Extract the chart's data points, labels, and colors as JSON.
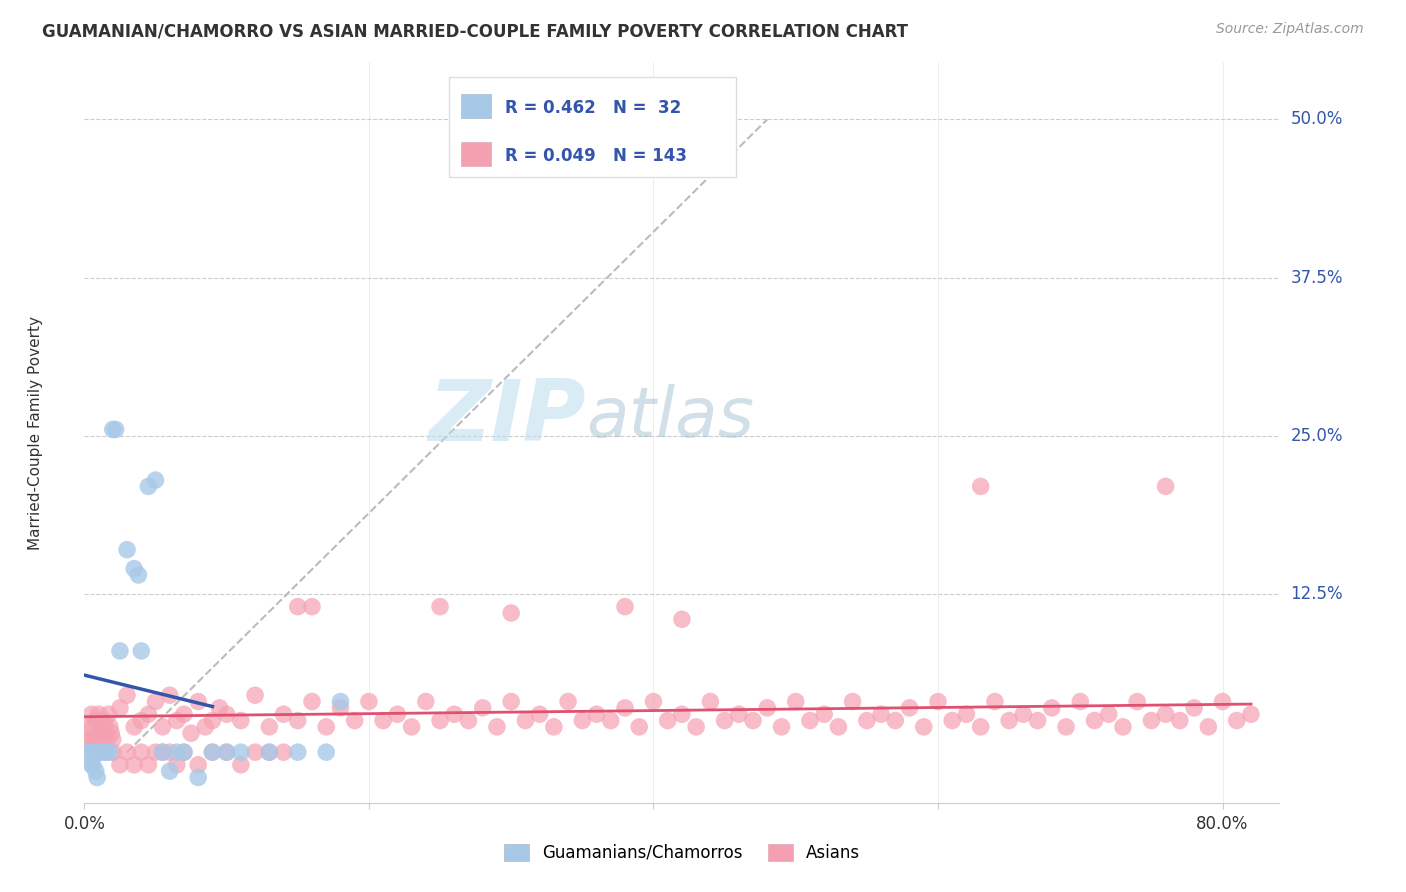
{
  "title": "GUAMANIAN/CHAMORRO VS ASIAN MARRIED-COUPLE FAMILY POVERTY CORRELATION CHART",
  "source": "Source: ZipAtlas.com",
  "ylabel": "Married-Couple Family Poverty",
  "ytick_vals": [
    0.0,
    0.125,
    0.25,
    0.375,
    0.5
  ],
  "ytick_labels": [
    "",
    "12.5%",
    "25.0%",
    "37.5%",
    "50.0%"
  ],
  "xlim": [
    0.0,
    0.84
  ],
  "ylim": [
    -0.04,
    0.545
  ],
  "blue_color": "#A8C8E8",
  "blue_line_color": "#3355AA",
  "pink_color": "#F5A0B0",
  "pink_line_color": "#E05070",
  "grid_color": "#CCCCCC",
  "watermark_zip": "ZIP",
  "watermark_atlas": "atlas",
  "blue_x": [
    0.003,
    0.004,
    0.005,
    0.006,
    0.007,
    0.008,
    0.009,
    0.01,
    0.012,
    0.015,
    0.018,
    0.02,
    0.022,
    0.025,
    0.03,
    0.035,
    0.038,
    0.04,
    0.045,
    0.05,
    0.055,
    0.06,
    0.065,
    0.07,
    0.08,
    0.09,
    0.1,
    0.11,
    0.13,
    0.15,
    0.17,
    0.18
  ],
  "blue_y": [
    0.0,
    0.0,
    -0.01,
    -0.01,
    0.0,
    -0.015,
    -0.02,
    0.0,
    0.0,
    0.0,
    0.0,
    0.255,
    0.255,
    0.08,
    0.16,
    0.145,
    0.14,
    0.08,
    0.21,
    0.215,
    0.0,
    -0.015,
    0.0,
    0.0,
    -0.02,
    0.0,
    0.0,
    0.0,
    0.0,
    0.0,
    0.0,
    0.04
  ],
  "pink_x": [
    0.002,
    0.003,
    0.004,
    0.005,
    0.006,
    0.007,
    0.008,
    0.009,
    0.01,
    0.011,
    0.012,
    0.013,
    0.014,
    0.015,
    0.016,
    0.017,
    0.018,
    0.019,
    0.02,
    0.025,
    0.03,
    0.035,
    0.04,
    0.045,
    0.05,
    0.055,
    0.06,
    0.065,
    0.07,
    0.075,
    0.08,
    0.085,
    0.09,
    0.095,
    0.1,
    0.11,
    0.12,
    0.13,
    0.14,
    0.15,
    0.16,
    0.17,
    0.18,
    0.19,
    0.2,
    0.21,
    0.22,
    0.23,
    0.24,
    0.25,
    0.26,
    0.27,
    0.28,
    0.29,
    0.3,
    0.31,
    0.32,
    0.33,
    0.34,
    0.35,
    0.36,
    0.37,
    0.38,
    0.39,
    0.4,
    0.41,
    0.42,
    0.43,
    0.44,
    0.45,
    0.46,
    0.47,
    0.48,
    0.49,
    0.5,
    0.51,
    0.52,
    0.53,
    0.54,
    0.55,
    0.56,
    0.57,
    0.58,
    0.59,
    0.6,
    0.61,
    0.62,
    0.63,
    0.64,
    0.65,
    0.66,
    0.67,
    0.68,
    0.69,
    0.7,
    0.71,
    0.72,
    0.73,
    0.74,
    0.75,
    0.76,
    0.77,
    0.78,
    0.79,
    0.8,
    0.81,
    0.82,
    0.01,
    0.015,
    0.02,
    0.025,
    0.03,
    0.035,
    0.04,
    0.045,
    0.05,
    0.055,
    0.06,
    0.065,
    0.07,
    0.08,
    0.09,
    0.1,
    0.11,
    0.12,
    0.13,
    0.14,
    0.15,
    0.16,
    0.25,
    0.3,
    0.38,
    0.42,
    0.63,
    0.76
  ],
  "pink_y": [
    0.01,
    0.02,
    0.01,
    0.03,
    0.02,
    0.01,
    0.025,
    0.01,
    0.03,
    0.02,
    0.015,
    0.01,
    0.025,
    0.02,
    0.01,
    0.03,
    0.02,
    0.015,
    0.01,
    0.035,
    0.045,
    0.02,
    0.025,
    0.03,
    0.04,
    0.02,
    0.045,
    0.025,
    0.03,
    0.015,
    0.04,
    0.02,
    0.025,
    0.035,
    0.03,
    0.025,
    0.045,
    0.02,
    0.03,
    0.025,
    0.04,
    0.02,
    0.035,
    0.025,
    0.04,
    0.025,
    0.03,
    0.02,
    0.04,
    0.025,
    0.03,
    0.025,
    0.035,
    0.02,
    0.04,
    0.025,
    0.03,
    0.02,
    0.04,
    0.025,
    0.03,
    0.025,
    0.035,
    0.02,
    0.04,
    0.025,
    0.03,
    0.02,
    0.04,
    0.025,
    0.03,
    0.025,
    0.035,
    0.02,
    0.04,
    0.025,
    0.03,
    0.02,
    0.04,
    0.025,
    0.03,
    0.025,
    0.035,
    0.02,
    0.04,
    0.025,
    0.03,
    0.02,
    0.04,
    0.025,
    0.03,
    0.025,
    0.035,
    0.02,
    0.04,
    0.025,
    0.03,
    0.02,
    0.04,
    0.025,
    0.03,
    0.025,
    0.035,
    0.02,
    0.04,
    0.025,
    0.03,
    0.0,
    0.0,
    0.0,
    -0.01,
    0.0,
    -0.01,
    0.0,
    -0.01,
    0.0,
    0.0,
    0.0,
    -0.01,
    0.0,
    -0.01,
    0.0,
    0.0,
    -0.01,
    0.0,
    0.0,
    0.0,
    0.115,
    0.115,
    0.115,
    0.11,
    0.115,
    0.105,
    0.21,
    0.21
  ]
}
